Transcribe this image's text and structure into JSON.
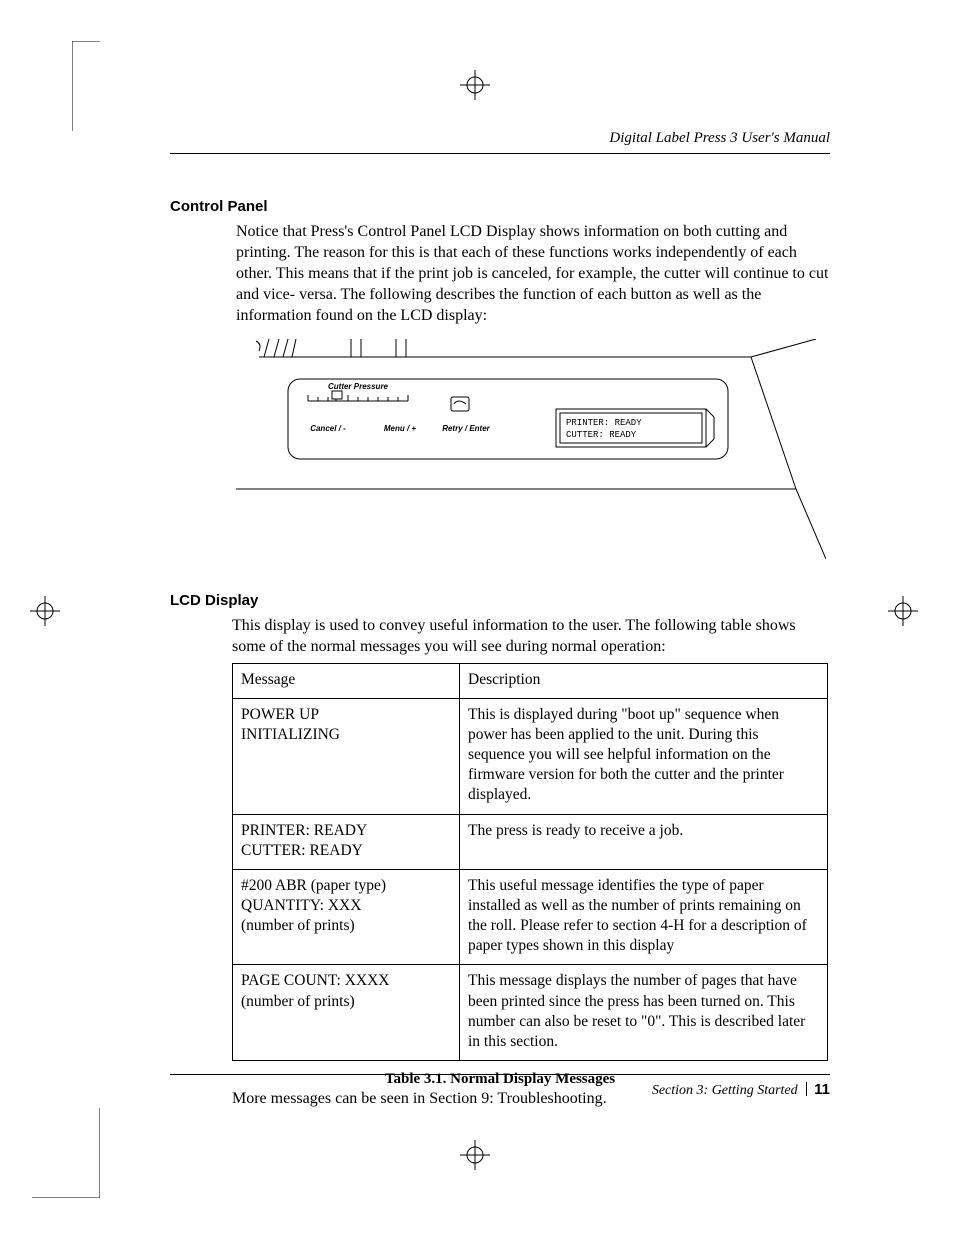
{
  "running_head": "Digital Label Press 3 User's Manual",
  "sections": {
    "control_panel": {
      "heading": "Control Panel",
      "para": "Notice that Press's Control Panel LCD Display shows information on both cutting and printing.  The reason for this is that each of these functions works independently of each other. This means that if the print job is canceled, for example, the cutter will continue to cut and vice- versa. The following describes the function of each button as well as the information found on the LCD display:"
    },
    "lcd_display": {
      "heading": "LCD Display",
      "para": "This display is used to convey useful information to the user. The following table shows some of the normal messages you will see during normal operation:"
    }
  },
  "panel_figure": {
    "labels": {
      "cutter_pressure": "Cutter Pressure",
      "cancel": "Cancel / -",
      "menu": "Menu / +",
      "retry": "Retry / Enter",
      "lcd_line1": "PRINTER: READY",
      "lcd_line2": "CUTTER: READY"
    },
    "style": {
      "stroke": "#000000",
      "fill": "#ffffff",
      "label_font": "Arial",
      "lcd_font": "monospace"
    }
  },
  "table": {
    "caption": "Table 3.1.  Normal Display Messages",
    "columns": [
      "Message",
      "Description"
    ],
    "rows": [
      {
        "message": "POWER UP\nINITIALIZING",
        "description": "This is displayed during \"boot up\" sequence when power has been applied to the unit. During this sequence you will see helpful information on the firmware version for both the cutter and the printer displayed."
      },
      {
        "message": "PRINTER: READY\nCUTTER: READY",
        "description": "The press is ready to receive a job."
      },
      {
        "message": "#200 ABR (paper type)\nQUANTITY: XXX\n(number of prints)",
        "description": "This useful message identifies the type of paper installed as well as the number of prints remaining on the roll. Please refer to section 4-H for a description of paper types shown in this display"
      },
      {
        "message": "PAGE COUNT: XXXX\n(number of prints)",
        "description": "This message displays the number of pages that have been printed since the press has been turned on. This number can also be reset to \"0\". This is described later in this section."
      }
    ]
  },
  "after_table": "More messages can be seen in Section 9: Troubleshooting.",
  "footer": {
    "section": "Section 3:  Getting Started",
    "page": "11"
  },
  "colors": {
    "text": "#000000",
    "background": "#ffffff",
    "rule": "#000000"
  }
}
